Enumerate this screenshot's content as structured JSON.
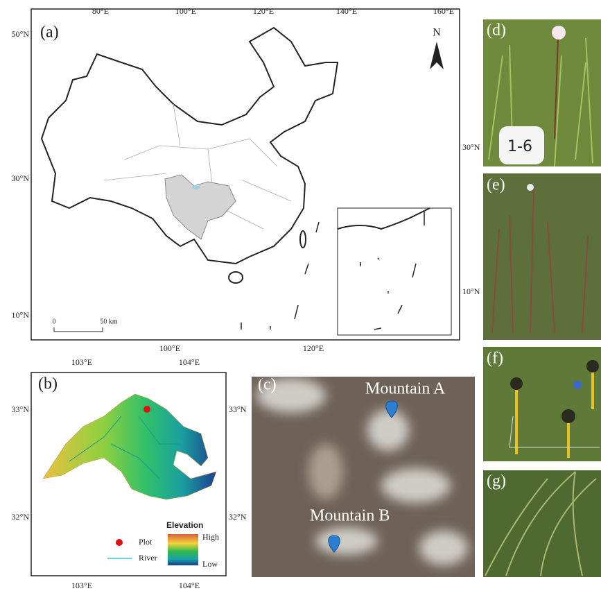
{
  "panel_a": {
    "label": "(a)",
    "north": "N",
    "top_ticks": [
      "80°E",
      "100°E",
      "120°E",
      "140°E",
      "160°E"
    ],
    "left_ticks": [
      "50°N",
      "30°N",
      "10°N"
    ],
    "right_ticks": [
      "30°N",
      "10°N"
    ],
    "bottom_ticks": [
      "100°E",
      "120°E"
    ],
    "scale": [
      "0",
      "50 km"
    ]
  },
  "panel_b": {
    "label": "(b)",
    "top_ticks": [
      "103°E",
      "104°E"
    ],
    "bottom_ticks": [
      "103°E",
      "104°E"
    ],
    "left_ticks": [
      "33°N",
      "32°N"
    ],
    "right_ticks": [
      "33°N",
      "32°N"
    ],
    "legend": {
      "plot": "Plot",
      "river": "River",
      "title": "Elevation",
      "high": "High",
      "low": "Low"
    }
  },
  "panel_c": {
    "label": "(c)",
    "mountain_a": "Mountain A",
    "mountain_b": "Mountain B"
  },
  "photos": {
    "d": "(d)",
    "e": "(e)",
    "f": "(f)",
    "g": "(g)",
    "tag": "1-6"
  }
}
